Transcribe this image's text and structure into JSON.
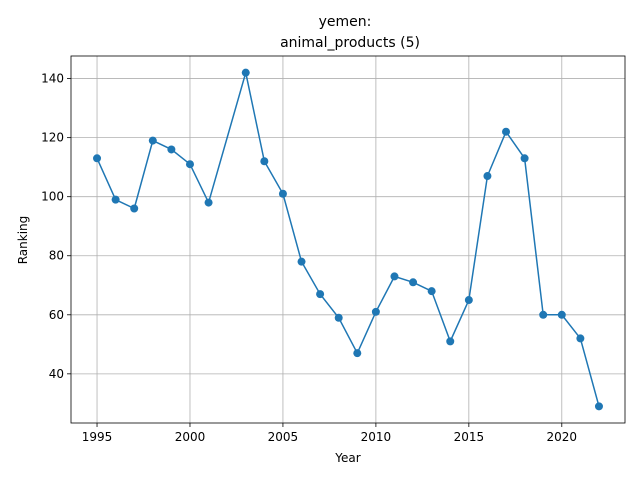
{
  "chart_data": {
    "type": "line",
    "title_line1": "yemen:",
    "title_line2": "animal_products (5)",
    "xlabel": "Year",
    "ylabel": "Ranking",
    "xlim": [
      1993.6,
      2023.4
    ],
    "ylim": [
      23.35,
      147.65
    ],
    "xticks": [
      1995,
      2000,
      2005,
      2010,
      2015,
      2020
    ],
    "yticks": [
      40,
      60,
      80,
      100,
      120,
      140
    ],
    "grid": true,
    "color": "#1f77b4",
    "series": [
      {
        "x": [
          1995,
          1996,
          1997,
          1998,
          1999,
          2000,
          2001,
          2003,
          2004,
          2005,
          2006,
          2007,
          2008,
          2009,
          2010,
          2011,
          2012,
          2013,
          2014,
          2015,
          2016,
          2017,
          2018,
          2019,
          2020,
          2021,
          2022
        ],
        "y": [
          113,
          99,
          96,
          119,
          116,
          111,
          98,
          142,
          112,
          101,
          78,
          67,
          59,
          47,
          61,
          73,
          71,
          68,
          51,
          65,
          107,
          122,
          113,
          60,
          60,
          52,
          29
        ]
      }
    ]
  }
}
